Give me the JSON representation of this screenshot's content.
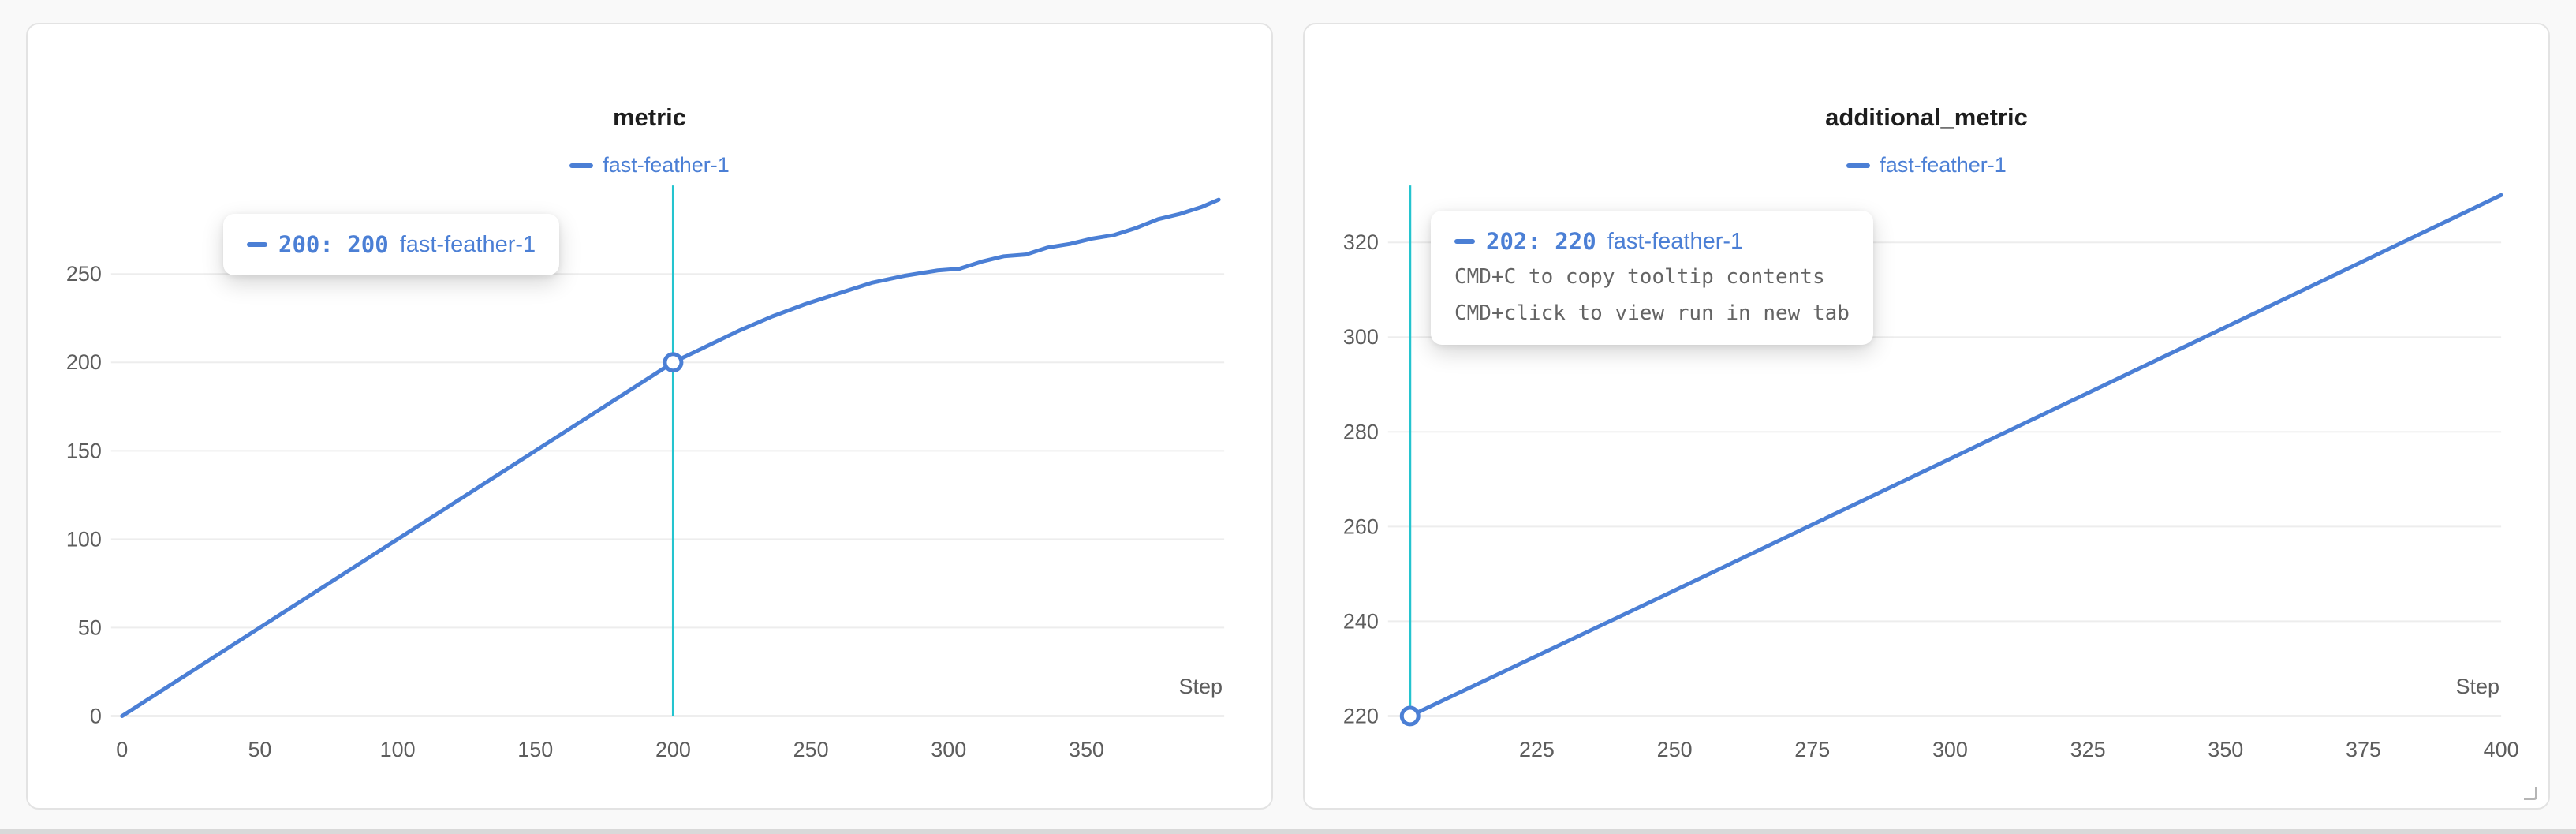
{
  "colors": {
    "run_blue": "#4b7fd5",
    "crosshair": "#24c4cf",
    "grid": "#ededed",
    "axis": "#dcdcdc",
    "tick_text": "#5d5d5d",
    "title_text": "#1e1e1e",
    "hint_text": "#646464"
  },
  "panels": [
    {
      "title": "metric",
      "legend": {
        "label": "fast-feather-1"
      },
      "x_axis_label": "Step",
      "tooltip": {
        "value": "200: 200",
        "run": "fast-feather-1",
        "hints": []
      }
    },
    {
      "title": "additional_metric",
      "legend": {
        "label": "fast-feather-1"
      },
      "x_axis_label": "Step",
      "tooltip": {
        "value": "202: 220",
        "run": "fast-feather-1",
        "hints": [
          "CMD+C to copy tooltip contents",
          "CMD+click to view run in new tab"
        ]
      }
    }
  ],
  "chart_data": [
    {
      "type": "line",
      "title": "metric",
      "xlabel": "Step",
      "ylabel": "",
      "legend": [
        "fast-feather-1"
      ],
      "legend_position": "top-center",
      "grid": "horizontal",
      "xlim": [
        0,
        400
      ],
      "ylim": [
        0,
        300
      ],
      "x_ticks": [
        0,
        50,
        100,
        150,
        200,
        250,
        300,
        350
      ],
      "y_ticks": [
        0,
        50,
        100,
        150,
        200,
        250
      ],
      "crosshair_x": 200,
      "highlight_point": [
        200,
        200
      ],
      "series": [
        {
          "name": "fast-feather-1",
          "color": "#4b7fd5",
          "points": [
            [
              0,
              0
            ],
            [
              20,
              20
            ],
            [
              40,
              40
            ],
            [
              60,
              60
            ],
            [
              80,
              80
            ],
            [
              100,
              100
            ],
            [
              120,
              120
            ],
            [
              140,
              140
            ],
            [
              160,
              160
            ],
            [
              180,
              180
            ],
            [
              200,
              200
            ],
            [
              212,
              209
            ],
            [
              224,
              218
            ],
            [
              236,
              226
            ],
            [
              248,
              233
            ],
            [
              260,
              239
            ],
            [
              272,
              245
            ],
            [
              284,
              249
            ],
            [
              296,
              252
            ],
            [
              304,
              253
            ],
            [
              312,
              257
            ],
            [
              320,
              260
            ],
            [
              328,
              261
            ],
            [
              336,
              265
            ],
            [
              344,
              267
            ],
            [
              352,
              270
            ],
            [
              360,
              272
            ],
            [
              368,
              276
            ],
            [
              376,
              281
            ],
            [
              384,
              284
            ],
            [
              392,
              288
            ],
            [
              398,
              292
            ]
          ]
        }
      ]
    },
    {
      "type": "line",
      "title": "additional_metric",
      "xlabel": "Step",
      "ylabel": "",
      "legend": [
        "fast-feather-1"
      ],
      "legend_position": "top-center",
      "grid": "horizontal",
      "xlim": [
        200,
        400
      ],
      "ylim": [
        220,
        332
      ],
      "x_ticks": [
        225,
        250,
        275,
        300,
        325,
        350,
        375,
        400
      ],
      "y_ticks": [
        220,
        240,
        260,
        280,
        300,
        320
      ],
      "crosshair_x": 202,
      "highlight_point": [
        202,
        220
      ],
      "series": [
        {
          "name": "fast-feather-1",
          "color": "#4b7fd5",
          "points": [
            [
              202,
              220
            ],
            [
              250,
              246.5
            ],
            [
              300,
              274.3
            ],
            [
              350,
              302.1
            ],
            [
              400,
              330
            ]
          ]
        }
      ]
    }
  ]
}
